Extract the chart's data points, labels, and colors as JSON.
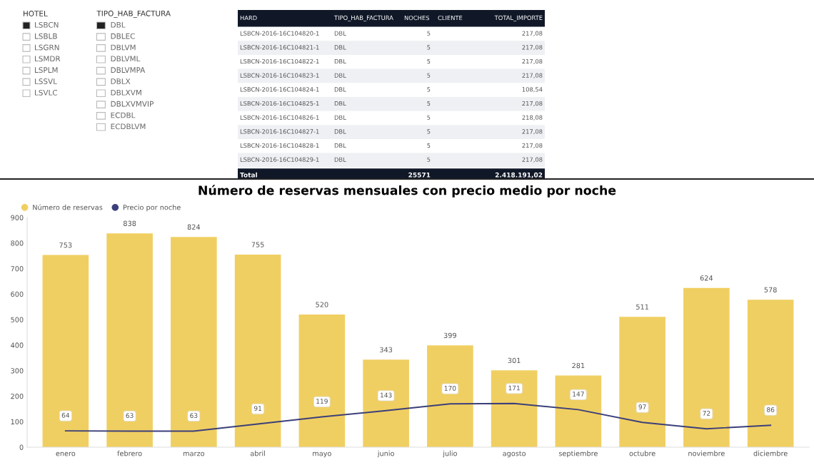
{
  "chart_data": [
    {
      "type": "other",
      "title": "HOTEL",
      "annotations": [
        "LSBCN",
        "LSBLB",
        "LSGRN",
        "LSMDR",
        "LSPLM",
        "LSSVL",
        "LSVLC"
      ]
    },
    {
      "type": "other",
      "title": "TIPO_HAB_FACTURA",
      "annotations": [
        "DBL",
        "DBLEC",
        "DBLVM",
        "DBLVML",
        "DBLVMPA",
        "DBLX",
        "DBLXVM",
        "DBLXVMVIP",
        "ECDBL",
        "ECDBLVM"
      ]
    },
    {
      "type": "other",
      "annotations": [
        "HARD",
        "TIPO_HAB_FACTURA",
        "NOCHES",
        "CLIENTE",
        "TOTAL_IMPORTE",
        "LSBCN-2016-16C104820-1",
        "DBL",
        "5",
        "217,08",
        "LSBCN-2016-16C104821-1",
        "DBL",
        "5",
        "217,08",
        "LSBCN-2016-16C104822-1",
        "DBL",
        "5",
        "217,08",
        "LSBCN-2016-16C104823-1",
        "DBL",
        "5",
        "217,08",
        "LSBCN-2016-16C104824-1",
        "DBL",
        "5",
        "108,54",
        "LSBCN-2016-16C104825-1",
        "DBL",
        "5",
        "217,08",
        "LSBCN-2016-16C104826-1",
        "DBL",
        "5",
        "218,08",
        "LSBCN-2016-16C104827-1",
        "DBL",
        "5",
        "217,08",
        "LSBCN-2016-16C104828-1",
        "DBL",
        "5",
        "217,08",
        "LSBCN-2016-16C104829-1",
        "DBL",
        "5",
        "217,08",
        "Total",
        "25571",
        "2.418.191,02"
      ]
    },
    {
      "type": "bar",
      "title": "Número de reservas mensuales con precio medio por noche",
      "categories": [
        "enero",
        "febrero",
        "marzo",
        "abril",
        "mayo",
        "junio",
        "julio",
        "agosto",
        "septiembre",
        "octubre",
        "noviembre",
        "diciembre"
      ],
      "series": [
        {
          "name": "Número de reservas",
          "color": "#f0cf62",
          "values": [
            753,
            838,
            824,
            755,
            520,
            343,
            399,
            301,
            281,
            511,
            624,
            578
          ]
        },
        {
          "name": "Precio por noche",
          "color": "#3b3f7a",
          "type": "line",
          "values": [
            64,
            63,
            63,
            91,
            119,
            143,
            170,
            171,
            147,
            97,
            72,
            86
          ]
        }
      ],
      "ylim": [
        0,
        900
      ],
      "yticks": [
        0,
        100,
        200,
        300,
        400,
        500,
        600,
        700,
        800,
        900
      ],
      "data_labels": true,
      "legend": "top left"
    }
  ]
}
